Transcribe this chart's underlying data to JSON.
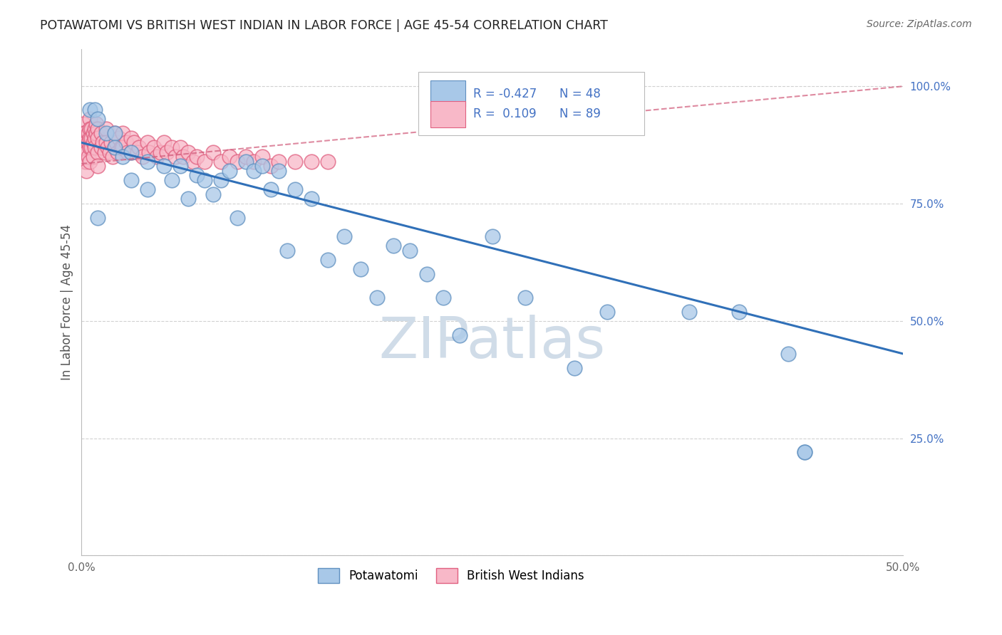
{
  "title": "POTAWATOMI VS BRITISH WEST INDIAN IN LABOR FORCE | AGE 45-54 CORRELATION CHART",
  "source": "Source: ZipAtlas.com",
  "ylabel": "In Labor Force | Age 45-54",
  "xmin": 0.0,
  "xmax": 0.5,
  "ymin": 0.0,
  "ymax": 1.08,
  "yticks": [
    0.0,
    0.25,
    0.5,
    0.75,
    1.0
  ],
  "ytick_labels": [
    "",
    "25.0%",
    "50.0%",
    "75.0%",
    "100.0%"
  ],
  "xticks": [
    0.0,
    0.1,
    0.2,
    0.3,
    0.4,
    0.5
  ],
  "xtick_labels": [
    "0.0%",
    "",
    "",
    "",
    "",
    "50.0%"
  ],
  "blue_color": "#a8c8e8",
  "pink_color": "#f8b8c8",
  "blue_edge_color": "#6090c0",
  "pink_edge_color": "#e06080",
  "blue_line_color": "#3070b8",
  "pink_line_color": "#d05878",
  "R_blue": -0.427,
  "N_blue": 48,
  "R_pink": 0.109,
  "N_pink": 89,
  "legend_R_color": "#4472c4",
  "watermark": "ZIPatlas",
  "watermark_color": "#d0dce8",
  "background_color": "#ffffff",
  "grid_color": "#cccccc",
  "blue_line_y0": 0.88,
  "blue_line_y1": 0.43,
  "pink_line_y0": 0.835,
  "pink_line_y1": 1.0,
  "blue_scatter_x": [
    0.005,
    0.008,
    0.01,
    0.01,
    0.015,
    0.02,
    0.02,
    0.025,
    0.03,
    0.03,
    0.04,
    0.04,
    0.05,
    0.055,
    0.06,
    0.065,
    0.07,
    0.075,
    0.08,
    0.085,
    0.09,
    0.095,
    0.1,
    0.105,
    0.11,
    0.115,
    0.12,
    0.125,
    0.13,
    0.14,
    0.15,
    0.16,
    0.17,
    0.18,
    0.19,
    0.2,
    0.21,
    0.22,
    0.23,
    0.25,
    0.27,
    0.3,
    0.32,
    0.37,
    0.4,
    0.43,
    0.44,
    0.44
  ],
  "blue_scatter_y": [
    0.95,
    0.95,
    0.93,
    0.72,
    0.9,
    0.9,
    0.87,
    0.85,
    0.86,
    0.8,
    0.84,
    0.78,
    0.83,
    0.8,
    0.83,
    0.76,
    0.81,
    0.8,
    0.77,
    0.8,
    0.82,
    0.72,
    0.84,
    0.82,
    0.83,
    0.78,
    0.82,
    0.65,
    0.78,
    0.76,
    0.63,
    0.68,
    0.61,
    0.55,
    0.66,
    0.65,
    0.6,
    0.55,
    0.47,
    0.68,
    0.55,
    0.4,
    0.52,
    0.52,
    0.52,
    0.43,
    0.22,
    0.22
  ],
  "pink_scatter_x": [
    0.001,
    0.001,
    0.001,
    0.001,
    0.001,
    0.002,
    0.002,
    0.002,
    0.002,
    0.003,
    0.003,
    0.003,
    0.003,
    0.004,
    0.004,
    0.004,
    0.005,
    0.005,
    0.005,
    0.005,
    0.005,
    0.006,
    0.006,
    0.006,
    0.007,
    0.007,
    0.007,
    0.008,
    0.008,
    0.008,
    0.009,
    0.009,
    0.01,
    0.01,
    0.01,
    0.01,
    0.012,
    0.012,
    0.013,
    0.014,
    0.015,
    0.015,
    0.016,
    0.017,
    0.018,
    0.019,
    0.02,
    0.02,
    0.021,
    0.022,
    0.023,
    0.024,
    0.025,
    0.025,
    0.027,
    0.028,
    0.03,
    0.03,
    0.032,
    0.034,
    0.035,
    0.037,
    0.04,
    0.041,
    0.044,
    0.046,
    0.048,
    0.05,
    0.052,
    0.055,
    0.057,
    0.06,
    0.062,
    0.065,
    0.068,
    0.07,
    0.075,
    0.08,
    0.085,
    0.09,
    0.095,
    0.1,
    0.105,
    0.11,
    0.115,
    0.12,
    0.13,
    0.14,
    0.15
  ],
  "pink_scatter_y": [
    0.92,
    0.9,
    0.88,
    0.86,
    0.85,
    0.9,
    0.88,
    0.86,
    0.84,
    0.88,
    0.86,
    0.84,
    0.82,
    0.9,
    0.88,
    0.85,
    0.93,
    0.91,
    0.89,
    0.87,
    0.84,
    0.91,
    0.89,
    0.87,
    0.9,
    0.88,
    0.85,
    0.91,
    0.89,
    0.87,
    0.92,
    0.9,
    0.91,
    0.89,
    0.86,
    0.83,
    0.9,
    0.87,
    0.88,
    0.86,
    0.91,
    0.88,
    0.87,
    0.86,
    0.88,
    0.85,
    0.9,
    0.87,
    0.88,
    0.86,
    0.89,
    0.87,
    0.9,
    0.87,
    0.88,
    0.86,
    0.89,
    0.86,
    0.88,
    0.86,
    0.87,
    0.85,
    0.88,
    0.86,
    0.87,
    0.85,
    0.86,
    0.88,
    0.86,
    0.87,
    0.85,
    0.87,
    0.85,
    0.86,
    0.84,
    0.85,
    0.84,
    0.86,
    0.84,
    0.85,
    0.84,
    0.85,
    0.84,
    0.85,
    0.83,
    0.84,
    0.84,
    0.84,
    0.84
  ]
}
